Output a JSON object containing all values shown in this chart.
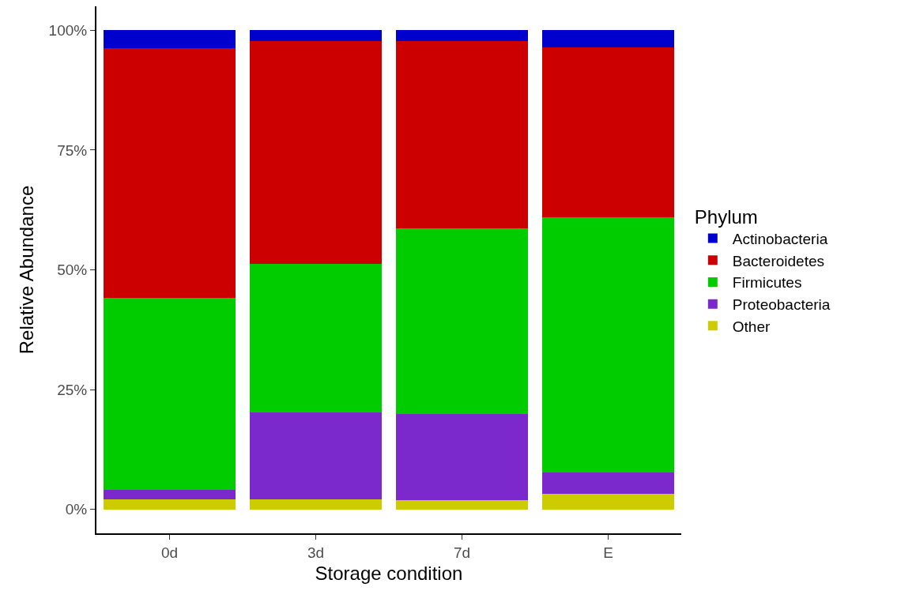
{
  "chart_data": {
    "type": "bar",
    "stacked": true,
    "xlabel": "Storage condition",
    "ylabel": "Relative Abundance",
    "legend_title": "Phylum",
    "legend": "right",
    "grid": false,
    "categories": [
      "0d",
      "3d",
      "7d",
      "E"
    ],
    "ylim": [
      -5,
      105
    ],
    "yticks": [
      {
        "value": 0,
        "label": "0%"
      },
      {
        "value": 25,
        "label": "25%"
      },
      {
        "value": 50,
        "label": "50%"
      },
      {
        "value": 75,
        "label": "75%"
      },
      {
        "value": 100,
        "label": "100%"
      }
    ],
    "series": [
      {
        "name": "Other",
        "color": "#cccc00",
        "values": [
          2.1,
          2.1,
          2.0,
          3.3
        ]
      },
      {
        "name": "Proteobacteria",
        "color": "#7b28cc",
        "values": [
          2.0,
          18.1,
          17.9,
          4.4
        ]
      },
      {
        "name": "Firmicutes",
        "color": "#00cc00",
        "values": [
          40.0,
          31.1,
          38.8,
          53.3
        ]
      },
      {
        "name": "Bacteroidetes",
        "color": "#cc0000",
        "values": [
          52.1,
          46.4,
          39.0,
          35.5
        ]
      },
      {
        "name": "Actinobacteria",
        "color": "#0000cc",
        "values": [
          3.8,
          2.3,
          2.3,
          3.5
        ]
      }
    ]
  }
}
